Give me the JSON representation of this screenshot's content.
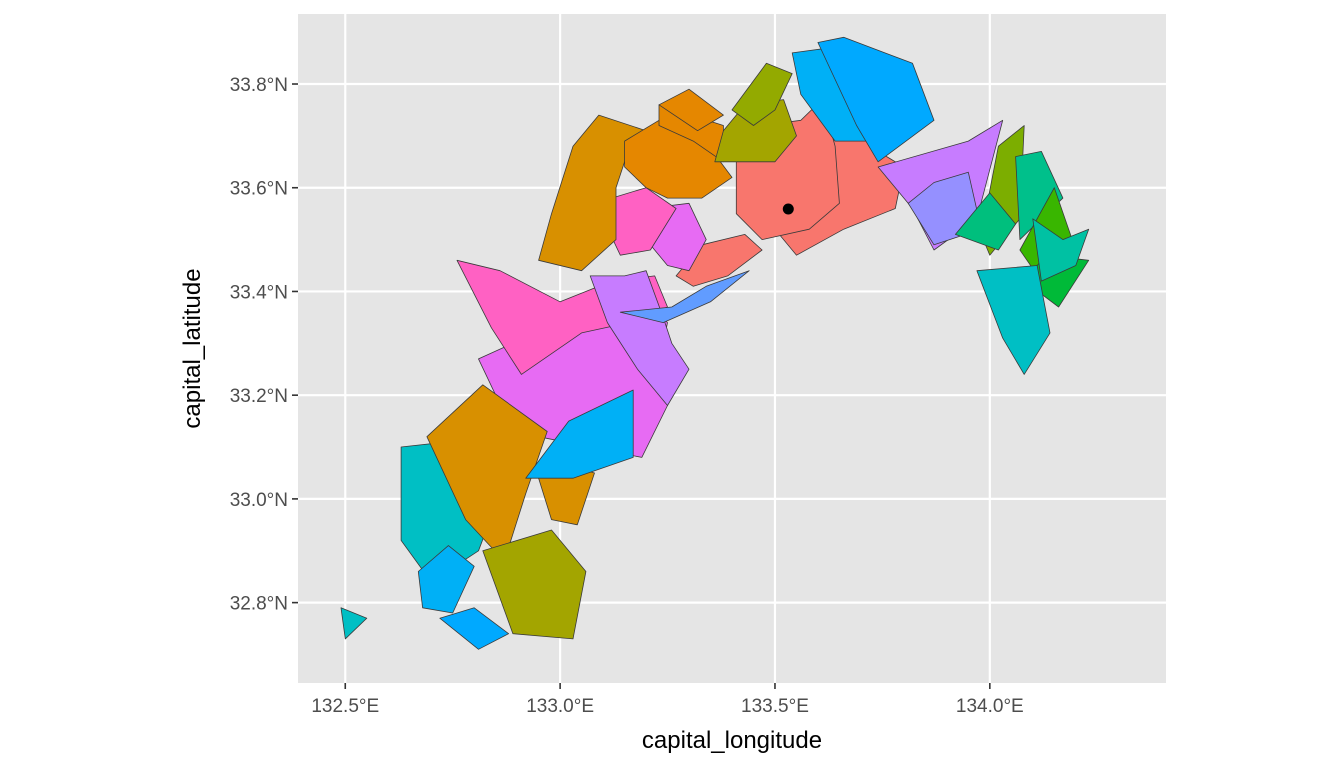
{
  "chart_data": {
    "type": "map",
    "xlabel": "capital_longitude",
    "ylabel": "capital_latitude",
    "xlim": [
      132.39,
      134.41
    ],
    "ylim": [
      32.645,
      33.935
    ],
    "x_ticks": [
      132.5,
      133.0,
      133.5,
      134.0
    ],
    "x_tick_labels": [
      "132.5°E",
      "133.0°E",
      "133.5°E",
      "134.0°E"
    ],
    "y_ticks": [
      32.8,
      33.0,
      33.2,
      33.4,
      33.6,
      33.8
    ],
    "y_tick_labels": [
      "32.8°N",
      "33.0°N",
      "33.2°N",
      "33.4°N",
      "33.6°N",
      "33.8°N"
    ],
    "grid": true,
    "legend": "none",
    "points": [
      {
        "lon": 133.531,
        "lat": 33.559
      }
    ],
    "regions": [
      {
        "fill": "#F8766D",
        "coords": [
          [
            133.78,
            33.56
          ],
          [
            133.8,
            33.64
          ],
          [
            133.72,
            33.68
          ],
          [
            133.66,
            33.76
          ],
          [
            133.56,
            33.72
          ],
          [
            133.52,
            33.59
          ],
          [
            133.5,
            33.52
          ],
          [
            133.55,
            33.47
          ],
          [
            133.66,
            33.52
          ]
        ]
      },
      {
        "fill": "#F8766D",
        "coords": [
          [
            133.56,
            33.73
          ],
          [
            133.61,
            33.77
          ],
          [
            133.64,
            33.68
          ],
          [
            133.65,
            33.57
          ],
          [
            133.58,
            33.52
          ],
          [
            133.47,
            33.5
          ],
          [
            133.41,
            33.55
          ],
          [
            133.41,
            33.65
          ],
          [
            133.47,
            33.72
          ]
        ]
      },
      {
        "fill": "#E76BF3",
        "coords": [
          [
            132.81,
            33.27
          ],
          [
            133.05,
            33.36
          ],
          [
            133.15,
            33.39
          ],
          [
            133.2,
            33.38
          ],
          [
            133.25,
            33.34
          ],
          [
            133.23,
            33.26
          ],
          [
            133.25,
            33.18
          ],
          [
            133.19,
            33.08
          ],
          [
            132.95,
            33.12
          ],
          [
            132.85,
            33.2
          ]
        ]
      },
      {
        "fill": "#FF61C3",
        "coords": [
          [
            132.76,
            33.46
          ],
          [
            132.86,
            33.44
          ],
          [
            133.0,
            33.38
          ],
          [
            133.12,
            33.42
          ],
          [
            133.22,
            33.43
          ],
          [
            133.25,
            33.37
          ],
          [
            133.16,
            33.34
          ],
          [
            133.05,
            33.32
          ],
          [
            132.91,
            33.24
          ],
          [
            132.84,
            33.33
          ]
        ]
      },
      {
        "fill": "#C77CFF",
        "coords": [
          [
            133.07,
            33.43
          ],
          [
            133.15,
            33.43
          ],
          [
            133.2,
            33.44
          ],
          [
            133.24,
            33.35
          ],
          [
            133.26,
            33.3
          ],
          [
            133.3,
            33.25
          ],
          [
            133.25,
            33.18
          ],
          [
            133.18,
            33.25
          ],
          [
            133.11,
            33.34
          ]
        ]
      },
      {
        "fill": "#F8766D",
        "coords": [
          [
            133.47,
            33.48
          ],
          [
            133.43,
            33.51
          ],
          [
            133.33,
            33.49
          ],
          [
            133.27,
            33.43
          ],
          [
            133.31,
            33.41
          ],
          [
            133.39,
            33.43
          ]
        ]
      },
      {
        "fill": "#E76BF3",
        "coords": [
          [
            133.2,
            33.56
          ],
          [
            133.3,
            33.57
          ],
          [
            133.34,
            33.5
          ],
          [
            133.3,
            33.44
          ],
          [
            133.25,
            33.45
          ],
          [
            133.2,
            33.5
          ]
        ]
      },
      {
        "fill": "#FF61C3",
        "coords": [
          [
            133.12,
            33.58
          ],
          [
            133.2,
            33.6
          ],
          [
            133.27,
            33.56
          ],
          [
            133.21,
            33.48
          ],
          [
            133.14,
            33.47
          ],
          [
            133.1,
            33.54
          ]
        ]
      },
      {
        "fill": "#D89000",
        "coords": [
          [
            133.05,
            33.44
          ],
          [
            133.13,
            33.5
          ],
          [
            133.13,
            33.6
          ],
          [
            133.15,
            33.65
          ],
          [
            133.2,
            33.71
          ],
          [
            133.09,
            33.74
          ],
          [
            133.03,
            33.68
          ],
          [
            132.98,
            33.55
          ],
          [
            132.95,
            33.46
          ]
        ]
      },
      {
        "fill": "#E58700",
        "coords": [
          [
            133.15,
            33.69
          ],
          [
            133.23,
            33.73
          ],
          [
            133.31,
            33.72
          ],
          [
            133.4,
            33.62
          ],
          [
            133.33,
            33.58
          ],
          [
            133.25,
            33.58
          ],
          [
            133.2,
            33.6
          ],
          [
            133.15,
            33.64
          ]
        ]
      },
      {
        "fill": "#E58700",
        "coords": [
          [
            133.23,
            33.76
          ],
          [
            133.38,
            33.72
          ],
          [
            133.38,
            33.65
          ],
          [
            133.31,
            33.69
          ],
          [
            133.23,
            33.72
          ]
        ]
      },
      {
        "fill": "#E58700",
        "coords": [
          [
            133.23,
            33.76
          ],
          [
            133.3,
            33.79
          ],
          [
            133.38,
            33.74
          ],
          [
            133.32,
            33.71
          ]
        ]
      },
      {
        "fill": "#A3A500",
        "coords": [
          [
            133.36,
            33.65
          ],
          [
            133.5,
            33.65
          ],
          [
            133.55,
            33.7
          ],
          [
            133.52,
            33.77
          ],
          [
            133.43,
            33.76
          ],
          [
            133.38,
            33.71
          ]
        ]
      },
      {
        "fill": "#93AA00",
        "coords": [
          [
            133.4,
            33.75
          ],
          [
            133.48,
            33.84
          ],
          [
            133.54,
            33.82
          ],
          [
            133.5,
            33.75
          ],
          [
            133.45,
            33.72
          ]
        ]
      },
      {
        "fill": "#00B0F6",
        "coords": [
          [
            133.54,
            33.86
          ],
          [
            133.63,
            33.87
          ],
          [
            133.75,
            33.81
          ],
          [
            133.83,
            33.71
          ],
          [
            133.73,
            33.69
          ],
          [
            133.64,
            33.69
          ],
          [
            133.56,
            33.78
          ]
        ]
      },
      {
        "fill": "#00A9FF",
        "coords": [
          [
            133.6,
            33.88
          ],
          [
            133.66,
            33.89
          ],
          [
            133.82,
            33.84
          ],
          [
            133.87,
            33.73
          ],
          [
            133.74,
            33.65
          ],
          [
            133.69,
            33.72
          ]
        ]
      },
      {
        "fill": "#C77CFF",
        "coords": [
          [
            133.74,
            33.64
          ],
          [
            133.95,
            33.69
          ],
          [
            134.03,
            33.73
          ],
          [
            133.97,
            33.54
          ],
          [
            133.87,
            33.48
          ],
          [
            133.82,
            33.56
          ]
        ]
      },
      {
        "fill": "#9590FF",
        "coords": [
          [
            133.81,
            33.57
          ],
          [
            133.87,
            33.61
          ],
          [
            133.95,
            33.63
          ],
          [
            133.98,
            33.52
          ],
          [
            133.87,
            33.49
          ]
        ]
      },
      {
        "fill": "#7CAE00",
        "coords": [
          [
            133.98,
            33.51
          ],
          [
            134.02,
            33.68
          ],
          [
            134.08,
            33.72
          ],
          [
            134.07,
            33.54
          ],
          [
            134.0,
            33.47
          ]
        ]
      },
      {
        "fill": "#00BF7D",
        "coords": [
          [
            133.92,
            33.51
          ],
          [
            134.0,
            33.59
          ],
          [
            134.06,
            33.53
          ],
          [
            134.02,
            33.48
          ]
        ]
      },
      {
        "fill": "#00C08B",
        "coords": [
          [
            134.06,
            33.66
          ],
          [
            134.12,
            33.67
          ],
          [
            134.17,
            33.58
          ],
          [
            134.07,
            33.5
          ]
        ]
      },
      {
        "fill": "#39B600",
        "coords": [
          [
            134.07,
            33.48
          ],
          [
            134.15,
            33.6
          ],
          [
            134.2,
            33.48
          ],
          [
            134.12,
            33.42
          ]
        ]
      },
      {
        "fill": "#00BA38",
        "coords": [
          [
            134.08,
            33.42
          ],
          [
            134.16,
            33.37
          ],
          [
            134.23,
            33.46
          ],
          [
            134.13,
            33.47
          ]
        ]
      },
      {
        "fill": "#00BFC4",
        "coords": [
          [
            133.97,
            33.44
          ],
          [
            134.11,
            33.45
          ],
          [
            134.14,
            33.32
          ],
          [
            134.08,
            33.24
          ],
          [
            134.03,
            33.31
          ]
        ]
      },
      {
        "fill": "#00C1A3",
        "coords": [
          [
            134.1,
            33.54
          ],
          [
            134.17,
            33.5
          ],
          [
            134.23,
            33.52
          ],
          [
            134.2,
            33.45
          ],
          [
            134.12,
            33.42
          ]
        ]
      },
      {
        "fill": "#00BFC4",
        "coords": [
          [
            132.63,
            33.1
          ],
          [
            132.74,
            33.11
          ],
          [
            132.86,
            33.01
          ],
          [
            132.81,
            32.9
          ],
          [
            132.7,
            32.84
          ],
          [
            132.63,
            32.92
          ]
        ]
      },
      {
        "fill": "#D89000",
        "coords": [
          [
            132.69,
            33.12
          ],
          [
            132.82,
            33.22
          ],
          [
            132.97,
            33.13
          ],
          [
            132.92,
            33.01
          ],
          [
            132.87,
            32.88
          ],
          [
            132.78,
            32.96
          ]
        ]
      },
      {
        "fill": "#00B0F6",
        "coords": [
          [
            132.67,
            32.86
          ],
          [
            132.74,
            32.91
          ],
          [
            132.8,
            32.87
          ],
          [
            132.75,
            32.78
          ],
          [
            132.68,
            32.79
          ]
        ]
      },
      {
        "fill": "#00A9FF",
        "coords": [
          [
            132.72,
            32.77
          ],
          [
            132.8,
            32.79
          ],
          [
            132.88,
            32.74
          ],
          [
            132.81,
            32.71
          ]
        ]
      },
      {
        "fill": "#A3A500",
        "coords": [
          [
            132.82,
            32.9
          ],
          [
            132.98,
            32.94
          ],
          [
            133.06,
            32.86
          ],
          [
            133.03,
            32.73
          ],
          [
            132.89,
            32.74
          ]
        ]
      },
      {
        "fill": "#D89000",
        "coords": [
          [
            132.95,
            33.04
          ],
          [
            133.0,
            33.07
          ],
          [
            133.08,
            33.05
          ],
          [
            133.04,
            32.95
          ],
          [
            132.98,
            32.96
          ]
        ]
      },
      {
        "fill": "#00B0F6",
        "coords": [
          [
            132.92,
            33.04
          ],
          [
            133.02,
            33.15
          ],
          [
            133.17,
            33.21
          ],
          [
            133.17,
            33.08
          ],
          [
            133.03,
            33.04
          ]
        ]
      },
      {
        "fill": "#619CFF",
        "coords": [
          [
            133.14,
            33.36
          ],
          [
            133.26,
            33.37
          ],
          [
            133.34,
            33.41
          ],
          [
            133.44,
            33.44
          ],
          [
            133.35,
            33.38
          ],
          [
            133.24,
            33.34
          ]
        ]
      },
      {
        "fill": "#00BFC4",
        "coords": [
          [
            132.49,
            32.79
          ],
          [
            132.55,
            32.77
          ],
          [
            132.5,
            32.73
          ]
        ]
      }
    ]
  }
}
